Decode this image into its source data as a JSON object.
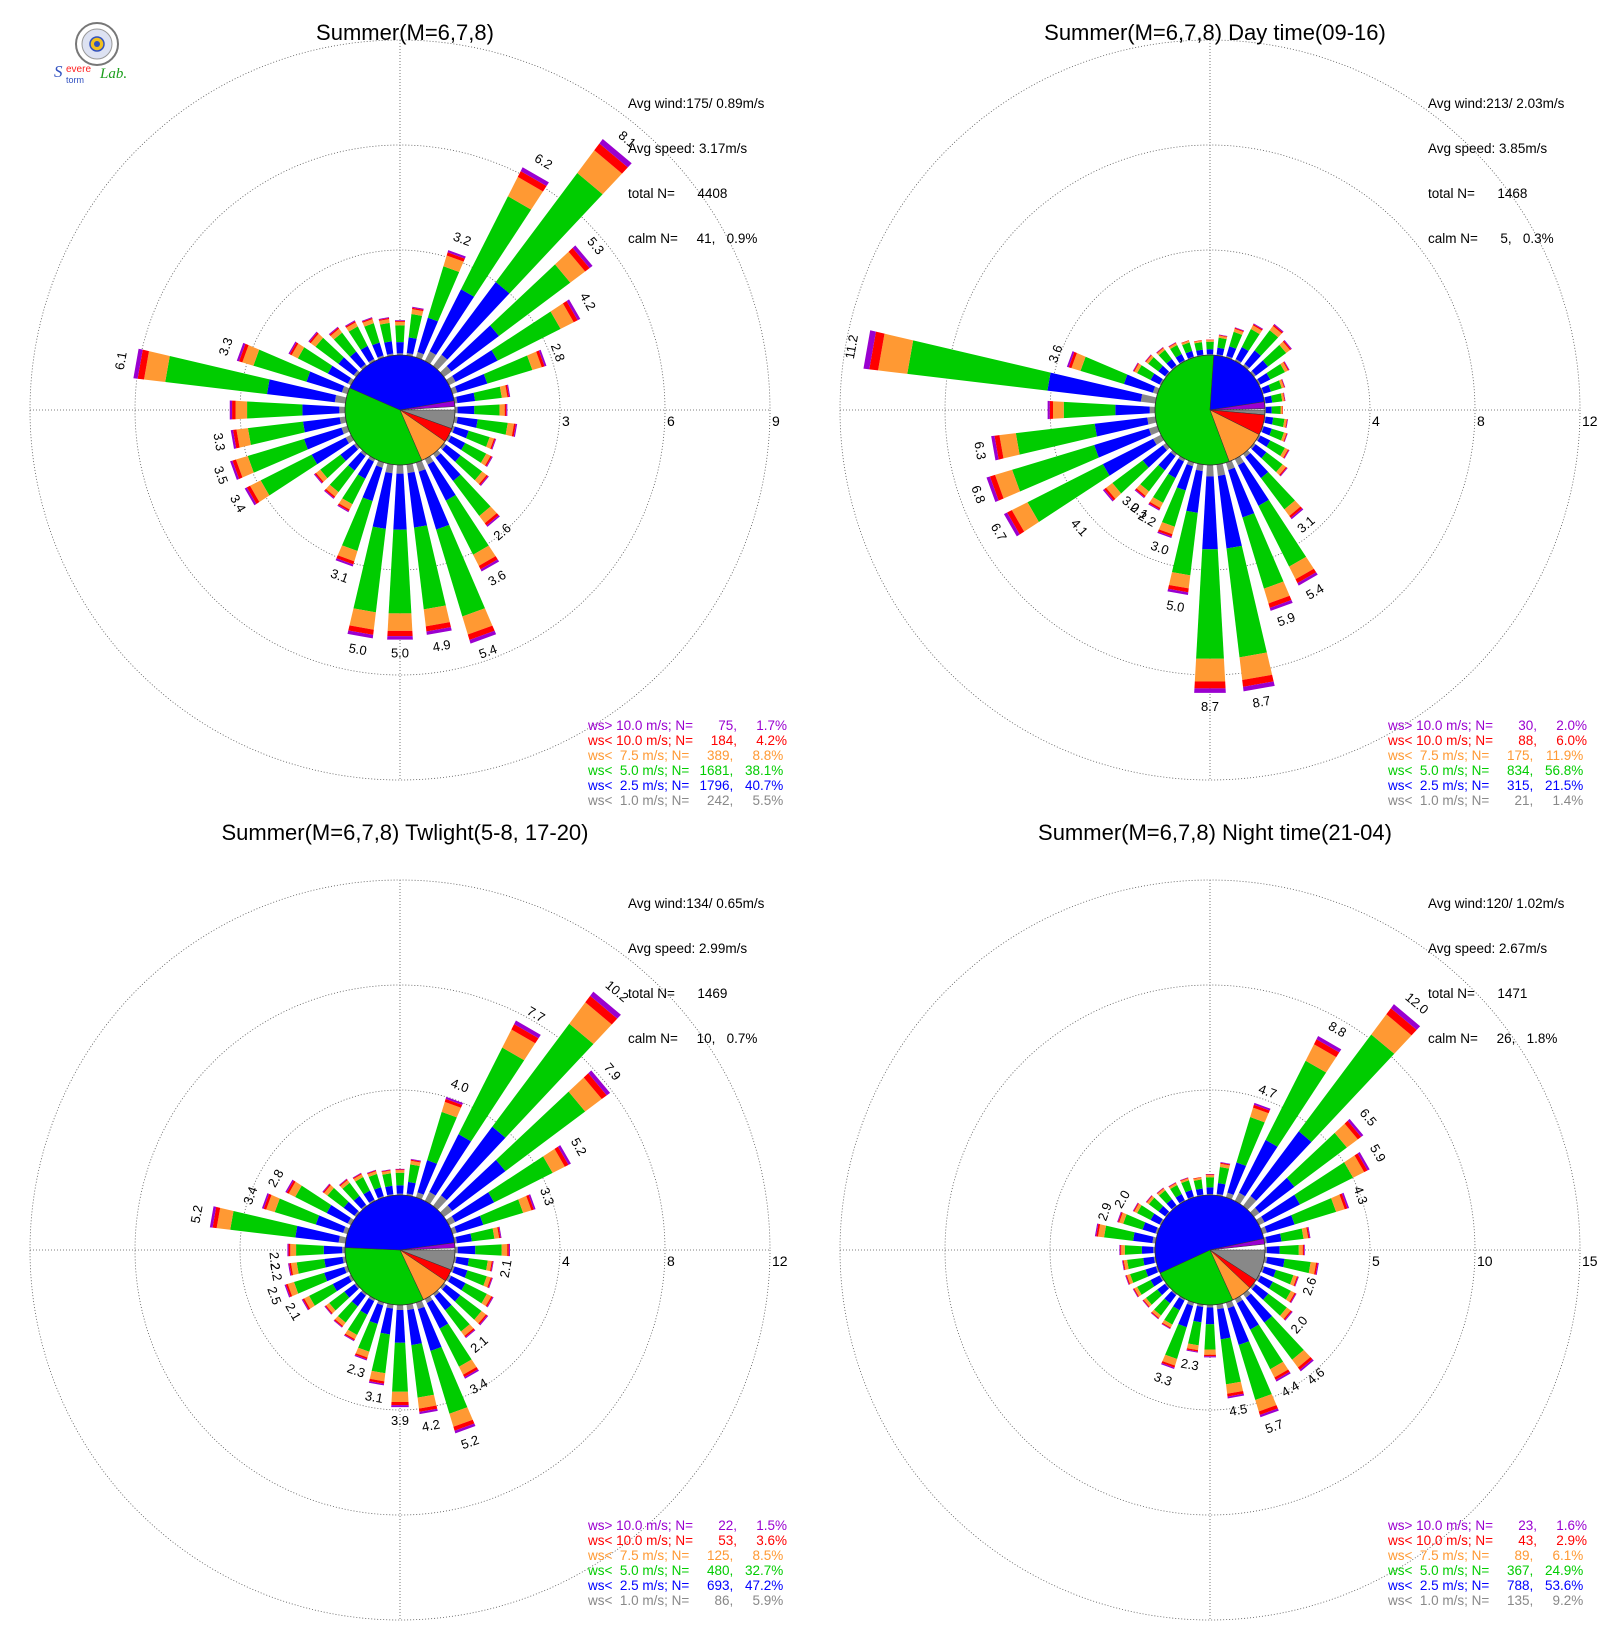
{
  "logo": {
    "text": "Severe Storm Lab.",
    "seal_colors": [
      "#888888",
      "#f0c020",
      "#3050c0"
    ]
  },
  "colors": {
    "ws_gt10": "#9a00d0",
    "ws_lt10": "#ff0000",
    "ws_lt7_5": "#ff9933",
    "ws_lt5": "#00cc00",
    "ws_lt2_5": "#0000ff",
    "ws_lt1": "#888888"
  },
  "chart_data": [
    {
      "type": "wind_rose",
      "title": "Summer(M=6,7,8)",
      "stats": [
        "Avg wind:175/ 0.89m/s",
        "Avg speed: 3.17m/s",
        "total N=      4408",
        "calm N=     41,   0.9%"
      ],
      "ring_labels": [
        "3",
        "6",
        "9"
      ],
      "rlim": [
        0,
        9
      ],
      "pie": [
        {
          "class": "ws< 1.0",
          "percent": 5.5
        },
        {
          "class": "ws< 10.0",
          "percent": 4.2
        },
        {
          "class": "ws< 7.5",
          "percent": 8.8
        },
        {
          "class": "ws< 5.0",
          "percent": 38.1
        },
        {
          "class": "ws< 2.5",
          "percent": 40.7
        },
        {
          "class": "ws> 10.0",
          "percent": 1.7
        }
      ],
      "directions_deg": [
        0,
        10,
        20,
        30,
        40,
        50,
        60,
        70,
        80,
        90,
        100,
        110,
        120,
        130,
        140,
        150,
        160,
        170,
        180,
        190,
        200,
        210,
        220,
        230,
        240,
        250,
        260,
        270,
        280,
        290,
        300,
        310,
        320,
        330,
        340,
        350
      ],
      "bars_percent": [
        1.0,
        1.4,
        3.2,
        6.2,
        8.1,
        5.3,
        4.2,
        2.8,
        1.6,
        1.5,
        1.8,
        1.3,
        1.4,
        1.6,
        2.6,
        3.6,
        5.4,
        4.9,
        5.0,
        5.0,
        3.1,
        1.7,
        1.6,
        1.5,
        3.4,
        3.5,
        3.3,
        3.3,
        6.1,
        3.3,
        2.0,
        1.7,
        1.4,
        1.3,
        1.2,
        1.1
      ],
      "bar_labels": [
        {
          "dir": 20,
          "text": "3.2"
        },
        {
          "dir": 30,
          "text": "6.2"
        },
        {
          "dir": 40,
          "text": "8.1"
        },
        {
          "dir": 50,
          "text": "5.3"
        },
        {
          "dir": 60,
          "text": "4.2"
        },
        {
          "dir": 70,
          "text": "2.8"
        },
        {
          "dir": 140,
          "text": "2.6"
        },
        {
          "dir": 150,
          "text": "3.6"
        },
        {
          "dir": 160,
          "text": "5.4"
        },
        {
          "dir": 170,
          "text": "4.9"
        },
        {
          "dir": 180,
          "text": "5.0"
        },
        {
          "dir": 190,
          "text": "5.0"
        },
        {
          "dir": 200,
          "text": "3.1"
        },
        {
          "dir": 240,
          "text": "3.4"
        },
        {
          "dir": 250,
          "text": "3.5"
        },
        {
          "dir": 260,
          "text": "3.3"
        },
        {
          "dir": 280,
          "text": "6.1"
        },
        {
          "dir": 290,
          "text": "3.3"
        }
      ],
      "legend": [
        {
          "label": "ws> 10.0 m/s; N=",
          "count": "75",
          "percent": "1.7%"
        },
        {
          "label": "ws< 10.0 m/s; N=",
          "count": "184",
          "percent": "4.2%"
        },
        {
          "label": "ws<  7.5 m/s; N=",
          "count": "389",
          "percent": "8.8%"
        },
        {
          "label": "ws<  5.0 m/s; N=",
          "count": "1681",
          "percent": "38.1%"
        },
        {
          "label": "ws<  2.5 m/s; N=",
          "count": "1796",
          "percent": "40.7%"
        },
        {
          "label": "ws<  1.0 m/s; N=",
          "count": "242",
          "percent": "5.5%"
        }
      ]
    },
    {
      "type": "wind_rose",
      "title": "Summer(M=6,7,8) Day time(09-16)",
      "stats": [
        "Avg wind:213/ 2.03m/s",
        "Avg speed: 3.85m/s",
        "total N=      1468",
        "calm N=      5,   0.3%"
      ],
      "ring_labels": [
        "4",
        "8",
        "12"
      ],
      "rlim": [
        0,
        12
      ],
      "pie": [
        {
          "class": "ws< 1.0",
          "percent": 1.4
        },
        {
          "class": "ws< 10.0",
          "percent": 6.0
        },
        {
          "class": "ws< 7.5",
          "percent": 11.9
        },
        {
          "class": "ws< 5.0",
          "percent": 56.8
        },
        {
          "class": "ws< 2.5",
          "percent": 21.5
        },
        {
          "class": "ws> 10.0",
          "percent": 2.0
        }
      ],
      "directions_deg": [
        0,
        10,
        20,
        30,
        40,
        50,
        60,
        70,
        80,
        90,
        100,
        110,
        120,
        130,
        140,
        150,
        160,
        170,
        180,
        190,
        200,
        210,
        220,
        230,
        240,
        250,
        260,
        270,
        280,
        290,
        300,
        310,
        320,
        330,
        340,
        350
      ],
      "bars_percent": [
        0.6,
        0.8,
        1.2,
        1.6,
        2.0,
        1.8,
        1.3,
        0.9,
        0.8,
        0.7,
        0.9,
        1.0,
        1.3,
        1.6,
        3.1,
        5.4,
        5.9,
        8.7,
        8.7,
        5.0,
        3.0,
        2.2,
        2.1,
        3.0,
        6.7,
        6.8,
        6.3,
        4.1,
        11.2,
        3.6,
        1.2,
        1.0,
        0.9,
        0.8,
        0.7,
        0.6
      ],
      "bar_labels": [
        {
          "dir": 140,
          "text": "3.1"
        },
        {
          "dir": 150,
          "text": "5.4"
        },
        {
          "dir": 160,
          "text": "5.9"
        },
        {
          "dir": 170,
          "text": "8.7"
        },
        {
          "dir": 180,
          "text": "8.7"
        },
        {
          "dir": 190,
          "text": "5.0"
        },
        {
          "dir": 200,
          "text": "3.0"
        },
        {
          "dir": 210,
          "text": "2.2"
        },
        {
          "dir": 215,
          "text": "2.1"
        },
        {
          "dir": 220,
          "text": "3.0"
        },
        {
          "dir": 228,
          "text": "4.1"
        },
        {
          "dir": 240,
          "text": "6.7"
        },
        {
          "dir": 250,
          "text": "6.8"
        },
        {
          "dir": 260,
          "text": "6.3"
        },
        {
          "dir": 280,
          "text": "11.2"
        },
        {
          "dir": 290,
          "text": "3.6"
        }
      ],
      "legend": [
        {
          "label": "ws> 10.0 m/s; N=",
          "count": "30",
          "percent": "2.0%"
        },
        {
          "label": "ws< 10.0 m/s; N=",
          "count": "88",
          "percent": "6.0%"
        },
        {
          "label": "ws<  7.5 m/s; N=",
          "count": "175",
          "percent": "11.9%"
        },
        {
          "label": "ws<  5.0 m/s; N=",
          "count": "834",
          "percent": "56.8%"
        },
        {
          "label": "ws<  2.5 m/s; N=",
          "count": "315",
          "percent": "21.5%"
        },
        {
          "label": "ws<  1.0 m/s; N=",
          "count": "21",
          "percent": "1.4%"
        }
      ]
    },
    {
      "type": "wind_rose",
      "title": "Summer(M=6,7,8) Twlight(5-8, 17-20)",
      "stats": [
        "Avg wind:134/ 0.65m/s",
        "Avg speed: 2.99m/s",
        "total N=      1469",
        "calm N=     10,   0.7%"
      ],
      "ring_labels": [
        "4",
        "8",
        "12"
      ],
      "rlim": [
        0,
        12
      ],
      "pie": [
        {
          "class": "ws< 1.0",
          "percent": 5.9
        },
        {
          "class": "ws< 10.0",
          "percent": 3.6
        },
        {
          "class": "ws< 7.5",
          "percent": 8.5
        },
        {
          "class": "ws< 5.0",
          "percent": 32.7
        },
        {
          "class": "ws< 2.5",
          "percent": 47.2
        },
        {
          "class": "ws> 10.0",
          "percent": 1.5
        }
      ],
      "directions_deg": [
        0,
        10,
        20,
        30,
        40,
        50,
        60,
        70,
        80,
        90,
        100,
        110,
        120,
        130,
        140,
        150,
        160,
        170,
        180,
        190,
        200,
        210,
        220,
        230,
        240,
        250,
        260,
        270,
        280,
        290,
        300,
        310,
        320,
        330,
        340,
        350
      ],
      "bars_percent": [
        1.0,
        1.4,
        4.0,
        7.7,
        10.2,
        7.9,
        5.2,
        3.3,
        1.8,
        2.1,
        1.5,
        1.6,
        1.9,
        2.1,
        2.1,
        3.4,
        5.2,
        4.2,
        3.9,
        3.1,
        2.3,
        1.8,
        1.6,
        1.5,
        2.1,
        2.5,
        2.2,
        2.2,
        5.2,
        3.4,
        2.8,
        1.6,
        1.3,
        1.2,
        1.1,
        1.0
      ],
      "bar_labels": [
        {
          "dir": 20,
          "text": "4.0"
        },
        {
          "dir": 30,
          "text": "7.7"
        },
        {
          "dir": 40,
          "text": "10.2"
        },
        {
          "dir": 50,
          "text": "7.9"
        },
        {
          "dir": 60,
          "text": "5.2"
        },
        {
          "dir": 70,
          "text": "3.3"
        },
        {
          "dir": 100,
          "text": "2.1"
        },
        {
          "dir": 140,
          "text": "2.1"
        },
        {
          "dir": 150,
          "text": "3.4"
        },
        {
          "dir": 160,
          "text": "5.2"
        },
        {
          "dir": 170,
          "text": "4.2"
        },
        {
          "dir": 180,
          "text": "3.9"
        },
        {
          "dir": 190,
          "text": "3.1"
        },
        {
          "dir": 200,
          "text": "2.3"
        },
        {
          "dir": 240,
          "text": "2.1"
        },
        {
          "dir": 250,
          "text": "2.5"
        },
        {
          "dir": 260,
          "text": "2.2"
        },
        {
          "dir": 265,
          "text": "2.2"
        },
        {
          "dir": 280,
          "text": "5.2"
        },
        {
          "dir": 290,
          "text": "3.4"
        },
        {
          "dir": 300,
          "text": "2.8"
        }
      ],
      "legend": [
        {
          "label": "ws> 10.0 m/s; N=",
          "count": "22",
          "percent": "1.5%"
        },
        {
          "label": "ws< 10.0 m/s; N=",
          "count": "53",
          "percent": "3.6%"
        },
        {
          "label": "ws<  7.5 m/s; N=",
          "count": "125",
          "percent": "8.5%"
        },
        {
          "label": "ws<  5.0 m/s; N=",
          "count": "480",
          "percent": "32.7%"
        },
        {
          "label": "ws<  2.5 m/s; N=",
          "count": "693",
          "percent": "47.2%"
        },
        {
          "label": "ws<  1.0 m/s; N=",
          "count": "86",
          "percent": "5.9%"
        }
      ]
    },
    {
      "type": "wind_rose",
      "title": "Summer(M=6,7,8) Night time(21-04)",
      "stats": [
        "Avg wind:120/ 1.02m/s",
        "Avg speed: 2.67m/s",
        "total N=      1471",
        "calm N=     26,   1.8%"
      ],
      "ring_labels": [
        "5",
        "10",
        "15"
      ],
      "rlim": [
        0,
        15
      ],
      "pie": [
        {
          "class": "ws< 1.0",
          "percent": 9.2
        },
        {
          "class": "ws< 10.0",
          "percent": 2.9
        },
        {
          "class": "ws< 7.5",
          "percent": 6.1
        },
        {
          "class": "ws< 5.0",
          "percent": 24.9
        },
        {
          "class": "ws< 2.5",
          "percent": 53.6
        },
        {
          "class": "ws> 10.0",
          "percent": 1.6
        }
      ],
      "directions_deg": [
        0,
        10,
        20,
        30,
        40,
        50,
        60,
        70,
        80,
        90,
        100,
        110,
        120,
        130,
        140,
        150,
        160,
        170,
        180,
        190,
        200,
        210,
        220,
        230,
        240,
        250,
        260,
        270,
        280,
        290,
        300,
        310,
        320,
        330,
        340,
        350
      ],
      "bars_percent": [
        1.0,
        1.6,
        4.7,
        8.8,
        12.0,
        6.5,
        5.9,
        4.3,
        2.2,
        1.9,
        2.6,
        1.8,
        2.0,
        2.3,
        4.6,
        4.4,
        5.7,
        4.5,
        2.5,
        2.3,
        3.3,
        1.6,
        1.5,
        1.4,
        1.5,
        1.6,
        1.6,
        1.7,
        2.9,
        2.0,
        1.5,
        1.2,
        1.1,
        1.0,
        1.0,
        0.9
      ],
      "bar_labels": [
        {
          "dir": 20,
          "text": "4.7"
        },
        {
          "dir": 30,
          "text": "8.8"
        },
        {
          "dir": 40,
          "text": "12.0"
        },
        {
          "dir": 50,
          "text": "6.5"
        },
        {
          "dir": 60,
          "text": "5.9"
        },
        {
          "dir": 70,
          "text": "4.3"
        },
        {
          "dir": 110,
          "text": "2.6"
        },
        {
          "dir": 130,
          "text": "2.0"
        },
        {
          "dir": 140,
          "text": "4.6"
        },
        {
          "dir": 150,
          "text": "4.4"
        },
        {
          "dir": 160,
          "text": "5.7"
        },
        {
          "dir": 170,
          "text": "4.5"
        },
        {
          "dir": 190,
          "text": "2.3"
        },
        {
          "dir": 200,
          "text": "3.3"
        },
        {
          "dir": 290,
          "text": "2.9"
        },
        {
          "dir": 300,
          "text": "2.0"
        }
      ],
      "legend": [
        {
          "label": "ws> 10.0 m/s; N=",
          "count": "23",
          "percent": "1.6%"
        },
        {
          "label": "ws< 10.0 m/s; N=",
          "count": "43",
          "percent": "2.9%"
        },
        {
          "label": "ws<  7.5 m/s; N=",
          "count": "89",
          "percent": "6.1%"
        },
        {
          "label": "ws<  5.0 m/s; N=",
          "count": "367",
          "percent": "24.9%"
        },
        {
          "label": "ws<  2.5 m/s; N=",
          "count": "788",
          "percent": "53.6%"
        },
        {
          "label": "ws<  1.0 m/s; N=",
          "count": "135",
          "percent": "9.2%"
        }
      ]
    }
  ]
}
